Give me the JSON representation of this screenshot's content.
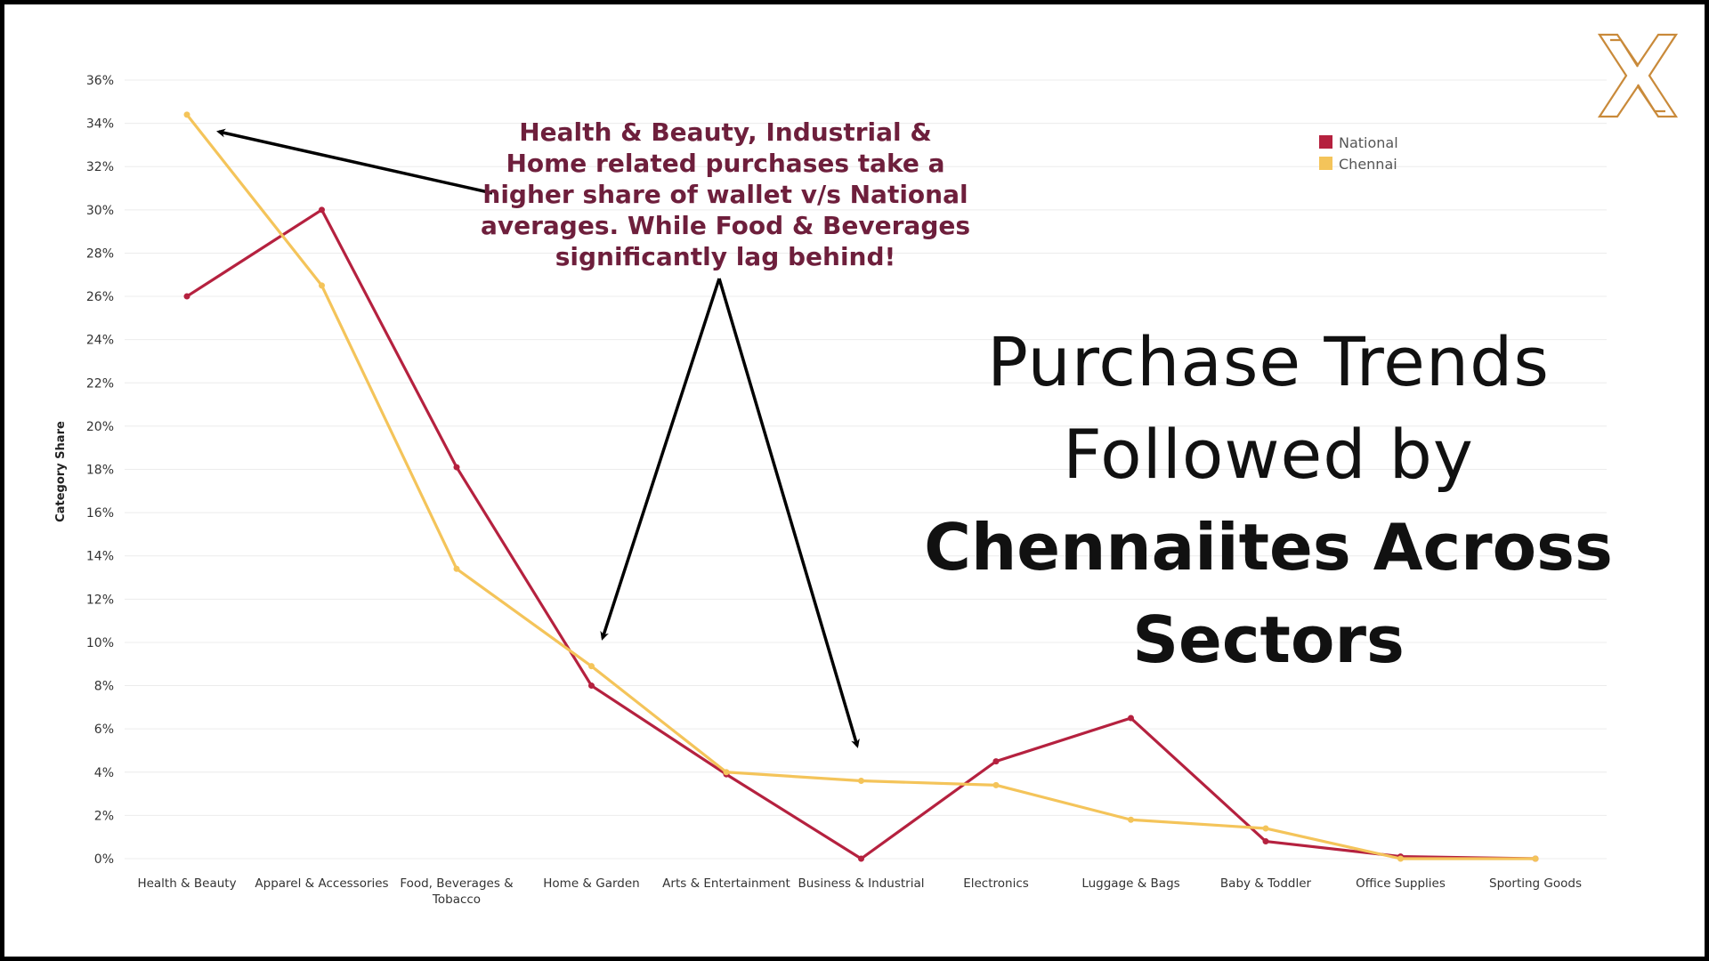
{
  "title": {
    "light": "Purchase Trends Followed by",
    "bold": "Chennaiites Across Sectors"
  },
  "annotation": "Health & Beauty, Industrial & Home related purchases take a higher share of wallet v/s National averages. While Food & Beverages significantly lag behind!",
  "logo_icon": "x-logo-icon",
  "chart_data": {
    "type": "line",
    "ylabel": "Category Share",
    "xlabel": "",
    "ylim": [
      0,
      36
    ],
    "yticks": [
      "0%",
      "2%",
      "4%",
      "6%",
      "8%",
      "10%",
      "12%",
      "14%",
      "16%",
      "18%",
      "20%",
      "22%",
      "24%",
      "26%",
      "28%",
      "30%",
      "32%",
      "34%",
      "36%"
    ],
    "grid": true,
    "legend_position": "top-right",
    "categories": [
      "Health & Beauty",
      "Apparel & Accessories",
      "Food, Beverages & Tobacco",
      "Home & Garden",
      "Arts & Entertainment",
      "Business & Industrial",
      "Electronics",
      "Luggage & Bags",
      "Baby & Toddler",
      "Office Supplies",
      "Sporting Goods"
    ],
    "series": [
      {
        "name": "National",
        "color": "#b5213f",
        "values": [
          26.0,
          30.0,
          18.1,
          8.0,
          3.9,
          0.0,
          4.5,
          6.5,
          0.8,
          0.1,
          0.0
        ]
      },
      {
        "name": "Chennai",
        "color": "#f4c45a",
        "values": [
          34.4,
          26.5,
          13.4,
          8.9,
          4.0,
          3.6,
          3.4,
          1.8,
          1.4,
          0.0,
          0.0
        ]
      }
    ]
  }
}
